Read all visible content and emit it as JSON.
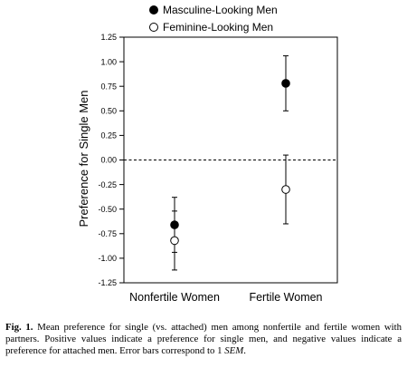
{
  "chart_data": {
    "type": "scatter",
    "categories": [
      "Nonfertile Women",
      "Fertile Women"
    ],
    "series": [
      {
        "name": "Masculine-Looking Men",
        "marker": "filled-circle",
        "values": [
          -0.66,
          0.78
        ],
        "error": [
          0.28,
          0.28
        ]
      },
      {
        "name": "Feminine-Looking Men",
        "marker": "open-circle",
        "values": [
          -0.82,
          -0.3
        ],
        "error": [
          0.3,
          0.35
        ]
      }
    ],
    "ylabel": "Preference for Single Men",
    "xlabel": "",
    "ylim": [
      -1.25,
      1.25
    ],
    "yticks": [
      "1.25",
      "1.00",
      "0.75",
      "0.50",
      "0.25",
      "0.00",
      "-0.25",
      "-0.50",
      "-0.75",
      "-1.00",
      "-1.25"
    ],
    "reference_line": {
      "y": 0,
      "style": "dashed"
    },
    "legend_position": "top-left",
    "grid": false
  },
  "caption": {
    "label": "Fig. 1.",
    "text": "Mean preference for single (vs. attached) men among nonfertile and fertile women with partners. Positive values indicate a preference for single men, and negative values indicate a preference for attached men. Error bars correspond to 1 ",
    "sem": "SEM",
    "end": "."
  }
}
